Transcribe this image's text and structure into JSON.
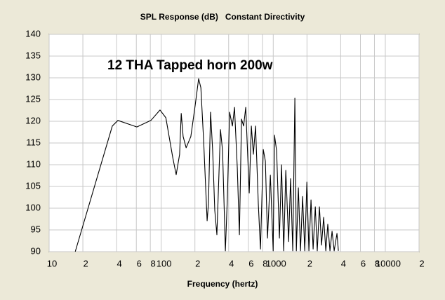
{
  "chart_data": {
    "type": "line",
    "title": "SPL Response (dB)   Constant Directivity",
    "annotation": "12 THA Tapped horn 200w",
    "x_label": "Frequency (hertz)",
    "log_x": true,
    "grid": true,
    "color": "#000000",
    "xlim": [
      10,
      20000
    ],
    "xticks": [
      10,
      {
        "value": 20,
        "label": "2"
      },
      {
        "value": 40,
        "label": "4"
      },
      {
        "value": 60,
        "label": "6"
      },
      {
        "value": 80,
        "label": "8"
      },
      100,
      {
        "value": 200,
        "label": "2"
      },
      {
        "value": 400,
        "label": "4"
      },
      {
        "value": 600,
        "label": "6"
      },
      {
        "value": 800,
        "label": "8"
      },
      1000,
      {
        "value": 2000,
        "label": "2"
      },
      {
        "value": 4000,
        "label": "4"
      },
      {
        "value": 6000,
        "label": "6"
      },
      {
        "value": 8000,
        "label": "8"
      },
      10000,
      {
        "value": 20000,
        "label": "2"
      }
    ],
    "ylim": [
      90,
      140
    ],
    "yticks": [
      90,
      95,
      100,
      105,
      110,
      115,
      120,
      125,
      130,
      135,
      140
    ],
    "x": [
      17.1,
      36.6,
      41.1,
      60.7,
      81,
      97.7,
      110,
      127,
      136,
      146,
      151,
      157,
      167,
      184,
      201,
      216,
      226,
      239,
      257,
      264,
      276,
      288,
      301,
      314,
      338,
      353,
      374,
      390,
      408,
      432,
      451,
      478,
      499,
      521,
      544,
      568,
      611,
      638,
      665,
      695,
      736,
      769,
      815,
      851,
      889,
      942,
      998,
      1026,
      1072,
      1135,
      1186,
      1239,
      1294,
      1371,
      1429,
      1493,
      1560,
      1607,
      1675,
      1750,
      1828,
      1910,
      1995,
      2081,
      2173,
      2270,
      2371,
      2472,
      2582,
      2698,
      2818,
      2944,
      3069,
      3206,
      3350,
      3499,
      3707,
      3811
    ],
    "values": [
      90,
      118.9,
      120.2,
      118.7,
      120.2,
      122.6,
      120.8,
      111.6,
      107.7,
      112.4,
      121.8,
      116.5,
      113.9,
      116.5,
      123.7,
      129.8,
      127.7,
      115.6,
      97.1,
      101.1,
      122.1,
      113.2,
      99.5,
      93.9,
      118.1,
      113.2,
      90.2,
      102.7,
      122.1,
      118.9,
      123.2,
      109.2,
      93.9,
      120.5,
      118.9,
      123.2,
      103.5,
      118.9,
      112.4,
      118.9,
      101.1,
      90.6,
      113.5,
      110.8,
      93.1,
      107.6,
      90.2,
      116.8,
      113.2,
      93.1,
      110,
      90.2,
      108.7,
      92.3,
      106.8,
      90.2,
      125.3,
      90.2,
      104.7,
      90.2,
      102.7,
      90.2,
      106,
      90.2,
      101.9,
      90.6,
      100.3,
      90.2,
      100.3,
      91.5,
      97.9,
      90.2,
      96.3,
      90.2,
      94.7,
      90.2,
      94.2,
      90.2
    ]
  }
}
